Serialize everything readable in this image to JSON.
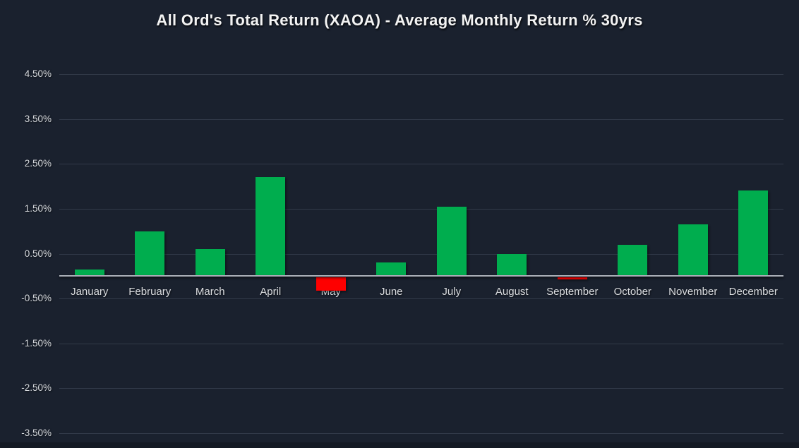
{
  "chart_data": {
    "type": "bar",
    "title": "All Ord's Total Return (XAOA) - Average Monthly Return % 30yrs",
    "xlabel": "",
    "ylabel": "",
    "categories": [
      "January",
      "February",
      "March",
      "April",
      "May",
      "June",
      "July",
      "August",
      "September",
      "October",
      "November",
      "December"
    ],
    "values": [
      0.15,
      1.0,
      0.6,
      2.2,
      -0.3,
      0.3,
      1.55,
      0.5,
      -0.05,
      0.7,
      1.15,
      1.9
    ],
    "value_unit": "%",
    "axis": {
      "ymax": 4.5,
      "ymin": -3.5,
      "yticks": [
        {
          "value": 4.5,
          "label": "4.50%"
        },
        {
          "value": 3.5,
          "label": "3.50%"
        },
        {
          "value": 2.5,
          "label": "2.50%"
        },
        {
          "value": 1.5,
          "label": "1.50%"
        },
        {
          "value": 0.5,
          "label": "0.50%"
        },
        {
          "value": -0.5,
          "label": "-0.50%"
        },
        {
          "value": -1.5,
          "label": "-1.50%"
        },
        {
          "value": -2.5,
          "label": "-2.50%"
        },
        {
          "value": -3.5,
          "label": "-3.50%"
        }
      ]
    },
    "grid": true,
    "legend": "none",
    "colors": {
      "positive_bar": "#00ad4e",
      "negative_bar": "#fe0000",
      "background": "#1a212e",
      "gridline": "#323a49",
      "zero_line": "#a9aeb6",
      "title_text": "#f3f3f3",
      "axis_text": "#d7dade"
    }
  }
}
